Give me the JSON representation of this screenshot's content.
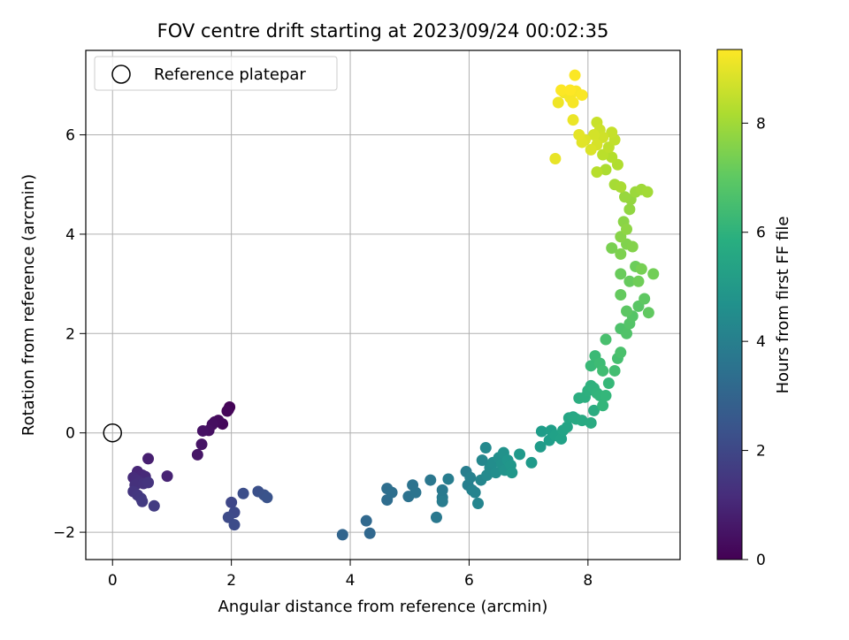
{
  "chart_data": {
    "type": "scatter",
    "title": "FOV centre drift starting at 2023/09/24 00:02:35",
    "xlabel": "Angular distance from reference (arcmin)",
    "ylabel": "Rotation from reference (arcmin)",
    "xlim": [
      -0.45,
      9.55
    ],
    "ylim": [
      -2.55,
      7.7
    ],
    "xticks": [
      "0",
      "2",
      "4",
      "6",
      "8"
    ],
    "xtick_values": [
      0,
      2,
      4,
      6,
      8
    ],
    "yticks": [
      "−2",
      "0",
      "2",
      "4",
      "6"
    ],
    "ytick_values": [
      -2,
      0,
      2,
      4,
      6
    ],
    "grid": true,
    "legend": {
      "placement": "top-left",
      "entries": [
        "Reference platepar"
      ]
    },
    "reference_point": {
      "x": 0,
      "y": 0,
      "label": "Reference platepar"
    },
    "colorbar": {
      "label": "Hours from first FF file",
      "colormap": "viridis",
      "range": [
        0,
        9.35
      ],
      "ticks": [
        "0",
        "2",
        "4",
        "6",
        "8"
      ],
      "tick_values": [
        0,
        2,
        4,
        6,
        8
      ]
    },
    "points": [
      {
        "x": 1.97,
        "y": 0.52,
        "c": 0.05
      },
      {
        "x": 1.95,
        "y": 0.47,
        "c": 0.1
      },
      {
        "x": 1.93,
        "y": 0.44,
        "c": 0.15
      },
      {
        "x": 1.85,
        "y": 0.18,
        "c": 0.2
      },
      {
        "x": 1.78,
        "y": 0.25,
        "c": 0.25
      },
      {
        "x": 1.72,
        "y": 0.22,
        "c": 0.3
      },
      {
        "x": 1.68,
        "y": 0.17,
        "c": 0.35
      },
      {
        "x": 1.62,
        "y": 0.05,
        "c": 0.4
      },
      {
        "x": 1.52,
        "y": 0.04,
        "c": 0.45
      },
      {
        "x": 1.5,
        "y": -0.23,
        "c": 0.5
      },
      {
        "x": 1.43,
        "y": -0.44,
        "c": 0.55
      },
      {
        "x": 0.6,
        "y": -0.52,
        "c": 0.8
      },
      {
        "x": 0.92,
        "y": -0.87,
        "c": 0.9
      },
      {
        "x": 0.42,
        "y": -0.78,
        "c": 1.0
      },
      {
        "x": 0.5,
        "y": -0.85,
        "c": 1.05
      },
      {
        "x": 0.55,
        "y": -0.88,
        "c": 1.1
      },
      {
        "x": 0.35,
        "y": -0.9,
        "c": 1.15
      },
      {
        "x": 0.4,
        "y": -0.95,
        "c": 1.2
      },
      {
        "x": 0.45,
        "y": -1.0,
        "c": 1.25
      },
      {
        "x": 0.38,
        "y": -1.05,
        "c": 1.3
      },
      {
        "x": 0.52,
        "y": -1.02,
        "c": 1.35
      },
      {
        "x": 0.6,
        "y": -1.0,
        "c": 1.4
      },
      {
        "x": 0.35,
        "y": -1.18,
        "c": 1.45
      },
      {
        "x": 0.42,
        "y": -1.25,
        "c": 1.5
      },
      {
        "x": 0.48,
        "y": -1.32,
        "c": 1.55
      },
      {
        "x": 0.5,
        "y": -1.38,
        "c": 1.6
      },
      {
        "x": 0.7,
        "y": -1.47,
        "c": 1.65
      },
      {
        "x": 2.0,
        "y": -1.4,
        "c": 2.0
      },
      {
        "x": 2.05,
        "y": -1.6,
        "c": 2.05
      },
      {
        "x": 1.95,
        "y": -1.7,
        "c": 2.1
      },
      {
        "x": 2.05,
        "y": -1.85,
        "c": 2.15
      },
      {
        "x": 2.2,
        "y": -1.22,
        "c": 2.2
      },
      {
        "x": 2.45,
        "y": -1.18,
        "c": 2.3
      },
      {
        "x": 2.55,
        "y": -1.25,
        "c": 2.35
      },
      {
        "x": 2.6,
        "y": -1.3,
        "c": 2.4
      },
      {
        "x": 3.87,
        "y": -2.05,
        "c": 3.0
      },
      {
        "x": 4.33,
        "y": -2.02,
        "c": 3.1
      },
      {
        "x": 4.27,
        "y": -1.77,
        "c": 3.15
      },
      {
        "x": 4.62,
        "y": -1.35,
        "c": 3.3
      },
      {
        "x": 4.62,
        "y": -1.12,
        "c": 3.35
      },
      {
        "x": 4.7,
        "y": -1.2,
        "c": 3.4
      },
      {
        "x": 4.98,
        "y": -1.28,
        "c": 3.5
      },
      {
        "x": 5.05,
        "y": -1.05,
        "c": 3.55
      },
      {
        "x": 5.1,
        "y": -1.2,
        "c": 3.6
      },
      {
        "x": 5.35,
        "y": -0.95,
        "c": 3.7
      },
      {
        "x": 5.45,
        "y": -1.7,
        "c": 3.75
      },
      {
        "x": 5.55,
        "y": -1.15,
        "c": 3.8
      },
      {
        "x": 5.55,
        "y": -1.3,
        "c": 3.85
      },
      {
        "x": 5.55,
        "y": -1.38,
        "c": 3.9
      },
      {
        "x": 5.65,
        "y": -0.93,
        "c": 3.95
      },
      {
        "x": 5.95,
        "y": -0.78,
        "c": 4.0
      },
      {
        "x": 5.98,
        "y": -1.05,
        "c": 4.05
      },
      {
        "x": 6.02,
        "y": -0.9,
        "c": 4.1
      },
      {
        "x": 6.05,
        "y": -1.15,
        "c": 4.15
      },
      {
        "x": 6.1,
        "y": -1.2,
        "c": 4.2
      },
      {
        "x": 6.15,
        "y": -1.42,
        "c": 4.25
      },
      {
        "x": 6.2,
        "y": -0.95,
        "c": 4.3
      },
      {
        "x": 6.22,
        "y": -0.55,
        "c": 4.35
      },
      {
        "x": 6.28,
        "y": -0.3,
        "c": 4.4
      },
      {
        "x": 6.3,
        "y": -0.85,
        "c": 4.45
      },
      {
        "x": 6.35,
        "y": -0.7,
        "c": 4.5
      },
      {
        "x": 6.4,
        "y": -0.6,
        "c": 4.55
      },
      {
        "x": 6.45,
        "y": -0.8,
        "c": 4.6
      },
      {
        "x": 6.5,
        "y": -0.5,
        "c": 4.65
      },
      {
        "x": 6.55,
        "y": -0.62,
        "c": 4.7
      },
      {
        "x": 6.58,
        "y": -0.4,
        "c": 4.75
      },
      {
        "x": 6.6,
        "y": -0.75,
        "c": 4.8
      },
      {
        "x": 6.65,
        "y": -0.55,
        "c": 4.85
      },
      {
        "x": 6.7,
        "y": -0.65,
        "c": 4.9
      },
      {
        "x": 6.72,
        "y": -0.8,
        "c": 4.95
      },
      {
        "x": 6.85,
        "y": -0.43,
        "c": 5.0
      },
      {
        "x": 7.05,
        "y": -0.6,
        "c": 5.05
      },
      {
        "x": 7.2,
        "y": -0.28,
        "c": 5.1
      },
      {
        "x": 7.22,
        "y": 0.03,
        "c": 5.15
      },
      {
        "x": 7.35,
        "y": -0.15,
        "c": 5.2
      },
      {
        "x": 7.38,
        "y": 0.05,
        "c": 5.25
      },
      {
        "x": 7.45,
        "y": -0.05,
        "c": 5.3
      },
      {
        "x": 7.55,
        "y": -0.12,
        "c": 5.35
      },
      {
        "x": 7.58,
        "y": 0.05,
        "c": 5.4
      },
      {
        "x": 7.65,
        "y": 0.12,
        "c": 5.45
      },
      {
        "x": 7.68,
        "y": 0.3,
        "c": 5.5
      },
      {
        "x": 7.75,
        "y": 0.32,
        "c": 5.55
      },
      {
        "x": 7.8,
        "y": 0.28,
        "c": 5.6
      },
      {
        "x": 7.9,
        "y": 0.25,
        "c": 5.65
      },
      {
        "x": 8.05,
        "y": 0.2,
        "c": 5.7
      },
      {
        "x": 8.1,
        "y": 0.45,
        "c": 5.75
      },
      {
        "x": 7.85,
        "y": 0.7,
        "c": 5.8
      },
      {
        "x": 7.95,
        "y": 0.72,
        "c": 5.85
      },
      {
        "x": 8.0,
        "y": 0.85,
        "c": 5.9
      },
      {
        "x": 8.05,
        "y": 0.95,
        "c": 5.95
      },
      {
        "x": 8.1,
        "y": 0.9,
        "c": 6.0
      },
      {
        "x": 8.15,
        "y": 0.8,
        "c": 6.05
      },
      {
        "x": 8.2,
        "y": 0.75,
        "c": 6.1
      },
      {
        "x": 8.25,
        "y": 0.55,
        "c": 6.15
      },
      {
        "x": 8.3,
        "y": 0.75,
        "c": 6.2
      },
      {
        "x": 8.35,
        "y": 1.0,
        "c": 6.25
      },
      {
        "x": 8.05,
        "y": 1.35,
        "c": 6.3
      },
      {
        "x": 8.12,
        "y": 1.55,
        "c": 6.35
      },
      {
        "x": 8.2,
        "y": 1.4,
        "c": 6.4
      },
      {
        "x": 8.25,
        "y": 1.25,
        "c": 6.45
      },
      {
        "x": 8.45,
        "y": 1.25,
        "c": 6.5
      },
      {
        "x": 8.5,
        "y": 1.5,
        "c": 6.55
      },
      {
        "x": 8.3,
        "y": 1.88,
        "c": 6.6
      },
      {
        "x": 8.55,
        "y": 1.62,
        "c": 6.65
      },
      {
        "x": 8.55,
        "y": 2.1,
        "c": 6.7
      },
      {
        "x": 8.65,
        "y": 2.0,
        "c": 6.75
      },
      {
        "x": 8.7,
        "y": 2.2,
        "c": 6.8
      },
      {
        "x": 8.75,
        "y": 2.35,
        "c": 6.85
      },
      {
        "x": 8.85,
        "y": 2.55,
        "c": 6.9
      },
      {
        "x": 8.65,
        "y": 2.45,
        "c": 6.95
      },
      {
        "x": 8.95,
        "y": 2.7,
        "c": 7.0
      },
      {
        "x": 9.02,
        "y": 2.42,
        "c": 7.05
      },
      {
        "x": 8.55,
        "y": 2.78,
        "c": 7.1
      },
      {
        "x": 8.7,
        "y": 3.05,
        "c": 7.15
      },
      {
        "x": 8.55,
        "y": 3.2,
        "c": 7.2
      },
      {
        "x": 8.8,
        "y": 3.35,
        "c": 7.25
      },
      {
        "x": 8.85,
        "y": 3.05,
        "c": 7.3
      },
      {
        "x": 9.1,
        "y": 3.2,
        "c": 7.35
      },
      {
        "x": 8.9,
        "y": 3.3,
        "c": 7.4
      },
      {
        "x": 8.4,
        "y": 3.72,
        "c": 7.45
      },
      {
        "x": 8.55,
        "y": 3.6,
        "c": 7.5
      },
      {
        "x": 8.65,
        "y": 3.8,
        "c": 7.55
      },
      {
        "x": 8.75,
        "y": 3.75,
        "c": 7.6
      },
      {
        "x": 8.55,
        "y": 3.95,
        "c": 7.65
      },
      {
        "x": 8.6,
        "y": 4.25,
        "c": 7.7
      },
      {
        "x": 8.65,
        "y": 4.1,
        "c": 7.75
      },
      {
        "x": 8.7,
        "y": 4.5,
        "c": 7.8
      },
      {
        "x": 8.72,
        "y": 4.7,
        "c": 7.85
      },
      {
        "x": 8.62,
        "y": 4.75,
        "c": 7.9
      },
      {
        "x": 8.8,
        "y": 4.85,
        "c": 7.95
      },
      {
        "x": 8.9,
        "y": 4.9,
        "c": 8.0
      },
      {
        "x": 9.0,
        "y": 4.85,
        "c": 8.05
      },
      {
        "x": 8.45,
        "y": 5.0,
        "c": 8.1
      },
      {
        "x": 8.55,
        "y": 4.95,
        "c": 8.15
      },
      {
        "x": 8.3,
        "y": 5.3,
        "c": 8.2
      },
      {
        "x": 8.5,
        "y": 5.4,
        "c": 8.25
      },
      {
        "x": 8.4,
        "y": 5.55,
        "c": 8.3
      },
      {
        "x": 8.15,
        "y": 5.25,
        "c": 8.35
      },
      {
        "x": 8.25,
        "y": 5.6,
        "c": 8.4
      },
      {
        "x": 8.35,
        "y": 5.75,
        "c": 8.45
      },
      {
        "x": 8.45,
        "y": 5.9,
        "c": 8.5
      },
      {
        "x": 8.4,
        "y": 6.05,
        "c": 8.55
      },
      {
        "x": 8.15,
        "y": 6.25,
        "c": 8.6
      },
      {
        "x": 8.2,
        "y": 6.1,
        "c": 8.65
      },
      {
        "x": 8.25,
        "y": 5.95,
        "c": 8.7
      },
      {
        "x": 8.1,
        "y": 6.0,
        "c": 8.75
      },
      {
        "x": 8.15,
        "y": 5.8,
        "c": 8.8
      },
      {
        "x": 8.05,
        "y": 5.7,
        "c": 8.85
      },
      {
        "x": 7.95,
        "y": 5.9,
        "c": 8.9
      },
      {
        "x": 7.9,
        "y": 5.85,
        "c": 8.95
      },
      {
        "x": 7.85,
        "y": 6.0,
        "c": 9.0
      },
      {
        "x": 7.45,
        "y": 5.52,
        "c": 9.05
      },
      {
        "x": 7.75,
        "y": 6.3,
        "c": 9.1
      },
      {
        "x": 7.5,
        "y": 6.65,
        "c": 9.15
      },
      {
        "x": 7.6,
        "y": 6.85,
        "c": 9.2
      },
      {
        "x": 7.7,
        "y": 6.75,
        "c": 9.22
      },
      {
        "x": 7.75,
        "y": 6.65,
        "c": 9.25
      },
      {
        "x": 7.8,
        "y": 6.88,
        "c": 9.27
      },
      {
        "x": 7.9,
        "y": 6.8,
        "c": 9.3
      },
      {
        "x": 7.78,
        "y": 7.2,
        "c": 9.32
      },
      {
        "x": 7.55,
        "y": 6.9,
        "c": 9.33
      },
      {
        "x": 7.7,
        "y": 6.9,
        "c": 9.35
      }
    ]
  }
}
